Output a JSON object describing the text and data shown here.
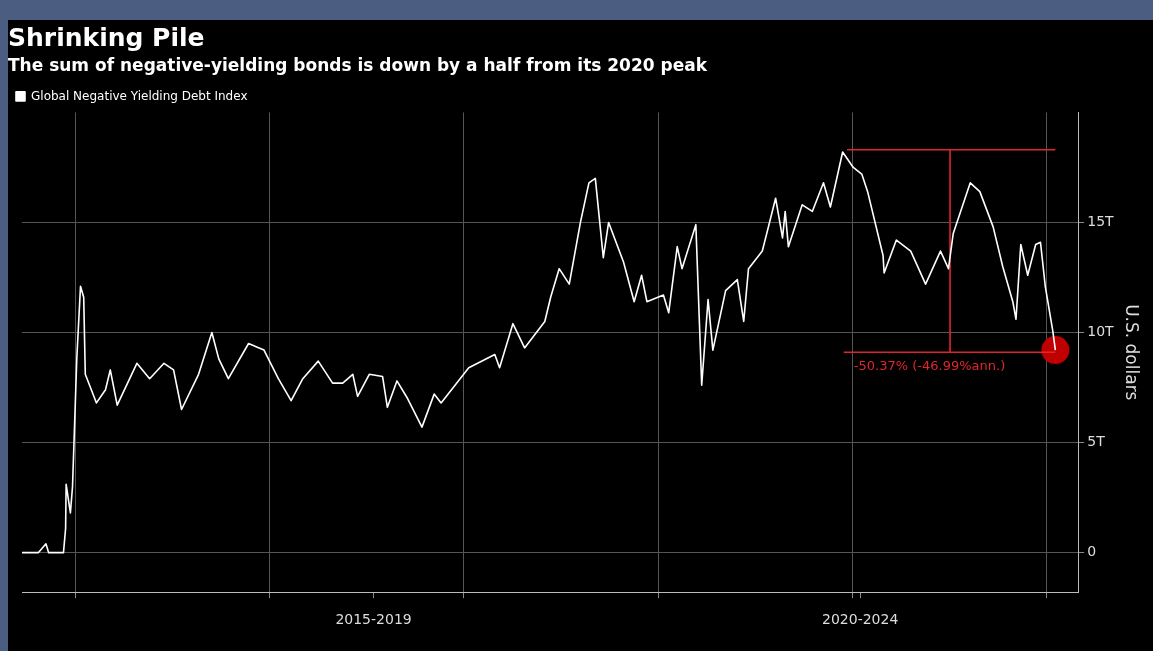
{
  "chart_data": {
    "type": "line",
    "title": "Shrinking Pile",
    "subtitle": "The sum of negative-yielding bonds is down by a half from its 2020 peak",
    "ylabel": "U.S. dollars",
    "xlim": [
      "2016-09-22",
      "2022-03-01"
    ],
    "ylim": [
      -1.8,
      20
    ],
    "xticks": [
      {
        "value": "2017-01-01",
        "label": null
      },
      {
        "value": "2018-01-01",
        "label": null
      },
      {
        "value": "2019-01-01",
        "label": null
      },
      {
        "value": "2020-01-01",
        "label": null
      },
      {
        "value": "2021-01-01",
        "label": null
      },
      {
        "value": "2022-01-01",
        "label": null
      },
      {
        "value": "2018-07-15",
        "label": "2015-2019"
      },
      {
        "value": "2021-01-15",
        "label": "2020-2024"
      }
    ],
    "yticks": [
      0,
      {
        "value": 5,
        "label": "5T"
      },
      {
        "value": 10,
        "label": "10T"
      },
      {
        "value": 15,
        "label": "15T"
      }
    ],
    "grid": true,
    "legend": "top left",
    "series": [
      {
        "name": "Global Negative Yielding Debt Index",
        "color": "#ffffff",
        "x": [
          "2016-09-22",
          "2016-10-23",
          "2016-11-06",
          "2016-11-11",
          "2016-12-09",
          "2016-12-13",
          "2016-12-14",
          "2016-12-22",
          "2016-12-26",
          "2017-01-03",
          "2017-01-10",
          "2017-01-16",
          "2017-01-19",
          "2017-02-09",
          "2017-02-26",
          "2017-03-07",
          "2017-03-20",
          "2017-04-26",
          "2017-05-20",
          "2017-06-16",
          "2017-07-04",
          "2017-07-19",
          "2017-08-20",
          "2017-09-14",
          "2017-09-27",
          "2017-10-15",
          "2017-11-22",
          "2017-12-21",
          "2018-01-17",
          "2018-02-10",
          "2018-03-04",
          "2018-04-02",
          "2018-04-29",
          "2018-05-18",
          "2018-06-06",
          "2018-06-15",
          "2018-07-07",
          "2018-08-01",
          "2018-08-10",
          "2018-08-28",
          "2018-09-17",
          "2018-10-14",
          "2018-11-06",
          "2018-11-19",
          "2019-01-10",
          "2019-02-28",
          "2019-03-09",
          "2019-04-03",
          "2019-04-25",
          "2019-06-02",
          "2019-06-13",
          "2019-06-29",
          "2019-07-18",
          "2019-08-08",
          "2019-08-24",
          "2019-09-05",
          "2019-09-20",
          "2019-09-30",
          "2019-10-28",
          "2019-11-17",
          "2019-12-01",
          "2019-12-11",
          "2020-01-11",
          "2020-01-21",
          "2020-02-06",
          "2020-02-15",
          "2020-03-12",
          "2020-03-23",
          "2020-04-04",
          "2020-04-13",
          "2020-05-07",
          "2020-05-29",
          "2020-06-10",
          "2020-06-19",
          "2020-07-15",
          "2020-08-09",
          "2020-08-22",
          "2020-08-27",
          "2020-09-02",
          "2020-09-28",
          "2020-10-17",
          "2020-11-07",
          "2020-11-20",
          "2020-12-13",
          "2021-01-02",
          "2021-01-18",
          "2021-01-29",
          "2021-02-27",
          "2021-03-01",
          "2021-03-24",
          "2021-04-20",
          "2021-05-18",
          "2021-06-15",
          "2021-06-30",
          "2021-07-09",
          "2021-08-10",
          "2021-08-28",
          "2021-09-22",
          "2021-10-10",
          "2021-10-29",
          "2021-11-04",
          "2021-11-13",
          "2021-11-26",
          "2021-12-11",
          "2021-12-20",
          "2021-12-29",
          "2022-01-12",
          "2022-01-17"
        ],
        "values": [
          0,
          0,
          0.4,
          0,
          0,
          1.1,
          3.1,
          1.8,
          3.0,
          8.8,
          12.1,
          11.6,
          8.1,
          6.8,
          7.4,
          8.3,
          6.7,
          8.6,
          7.9,
          8.6,
          8.3,
          6.5,
          8.1,
          10.0,
          8.8,
          7.9,
          9.5,
          9.2,
          7.9,
          6.9,
          7.9,
          8.7,
          7.7,
          7.7,
          8.1,
          7.1,
          8.1,
          8.0,
          6.6,
          7.8,
          7.0,
          5.7,
          7.2,
          6.8,
          8.4,
          9.0,
          8.4,
          10.4,
          9.3,
          10.5,
          11.6,
          12.9,
          12.2,
          15.0,
          16.8,
          17.0,
          13.4,
          15.0,
          13.2,
          11.4,
          12.6,
          11.4,
          11.7,
          10.9,
          13.9,
          12.9,
          14.9,
          7.6,
          11.5,
          9.2,
          11.9,
          12.4,
          10.5,
          12.9,
          13.7,
          16.1,
          14.3,
          15.5,
          13.9,
          15.8,
          15.5,
          16.8,
          15.7,
          18.2,
          17.5,
          17.2,
          16.4,
          13.5,
          12.7,
          14.2,
          13.7,
          12.2,
          13.7,
          12.9,
          14.5,
          16.8,
          16.4,
          14.8,
          13.0,
          11.4,
          10.6,
          14.0,
          12.6,
          14.0,
          14.1,
          12.1,
          10.1,
          9.2
        ]
      },
      {
        "type": "line",
        "color": "#e0262b",
        "x": [
          "2020-12-21",
          "2022-01-17"
        ],
        "values": [
          18.3,
          18.3
        ]
      },
      {
        "type": "line",
        "color": "#e0262b",
        "x": [
          "2020-12-15",
          "2022-01-17"
        ],
        "values": [
          9.1,
          9.1
        ]
      },
      {
        "type": "line",
        "color": "#e0262b",
        "x": [
          "2021-07-03",
          "2021-07-03"
        ],
        "values": [
          18.3,
          9.1
        ]
      },
      {
        "type": "scatter",
        "color": "#c00000",
        "x": [
          "2022-01-17"
        ],
        "values": [
          9.2
        ]
      }
    ],
    "annotations": [
      "-50.37% (-46.99%ann.)"
    ]
  }
}
